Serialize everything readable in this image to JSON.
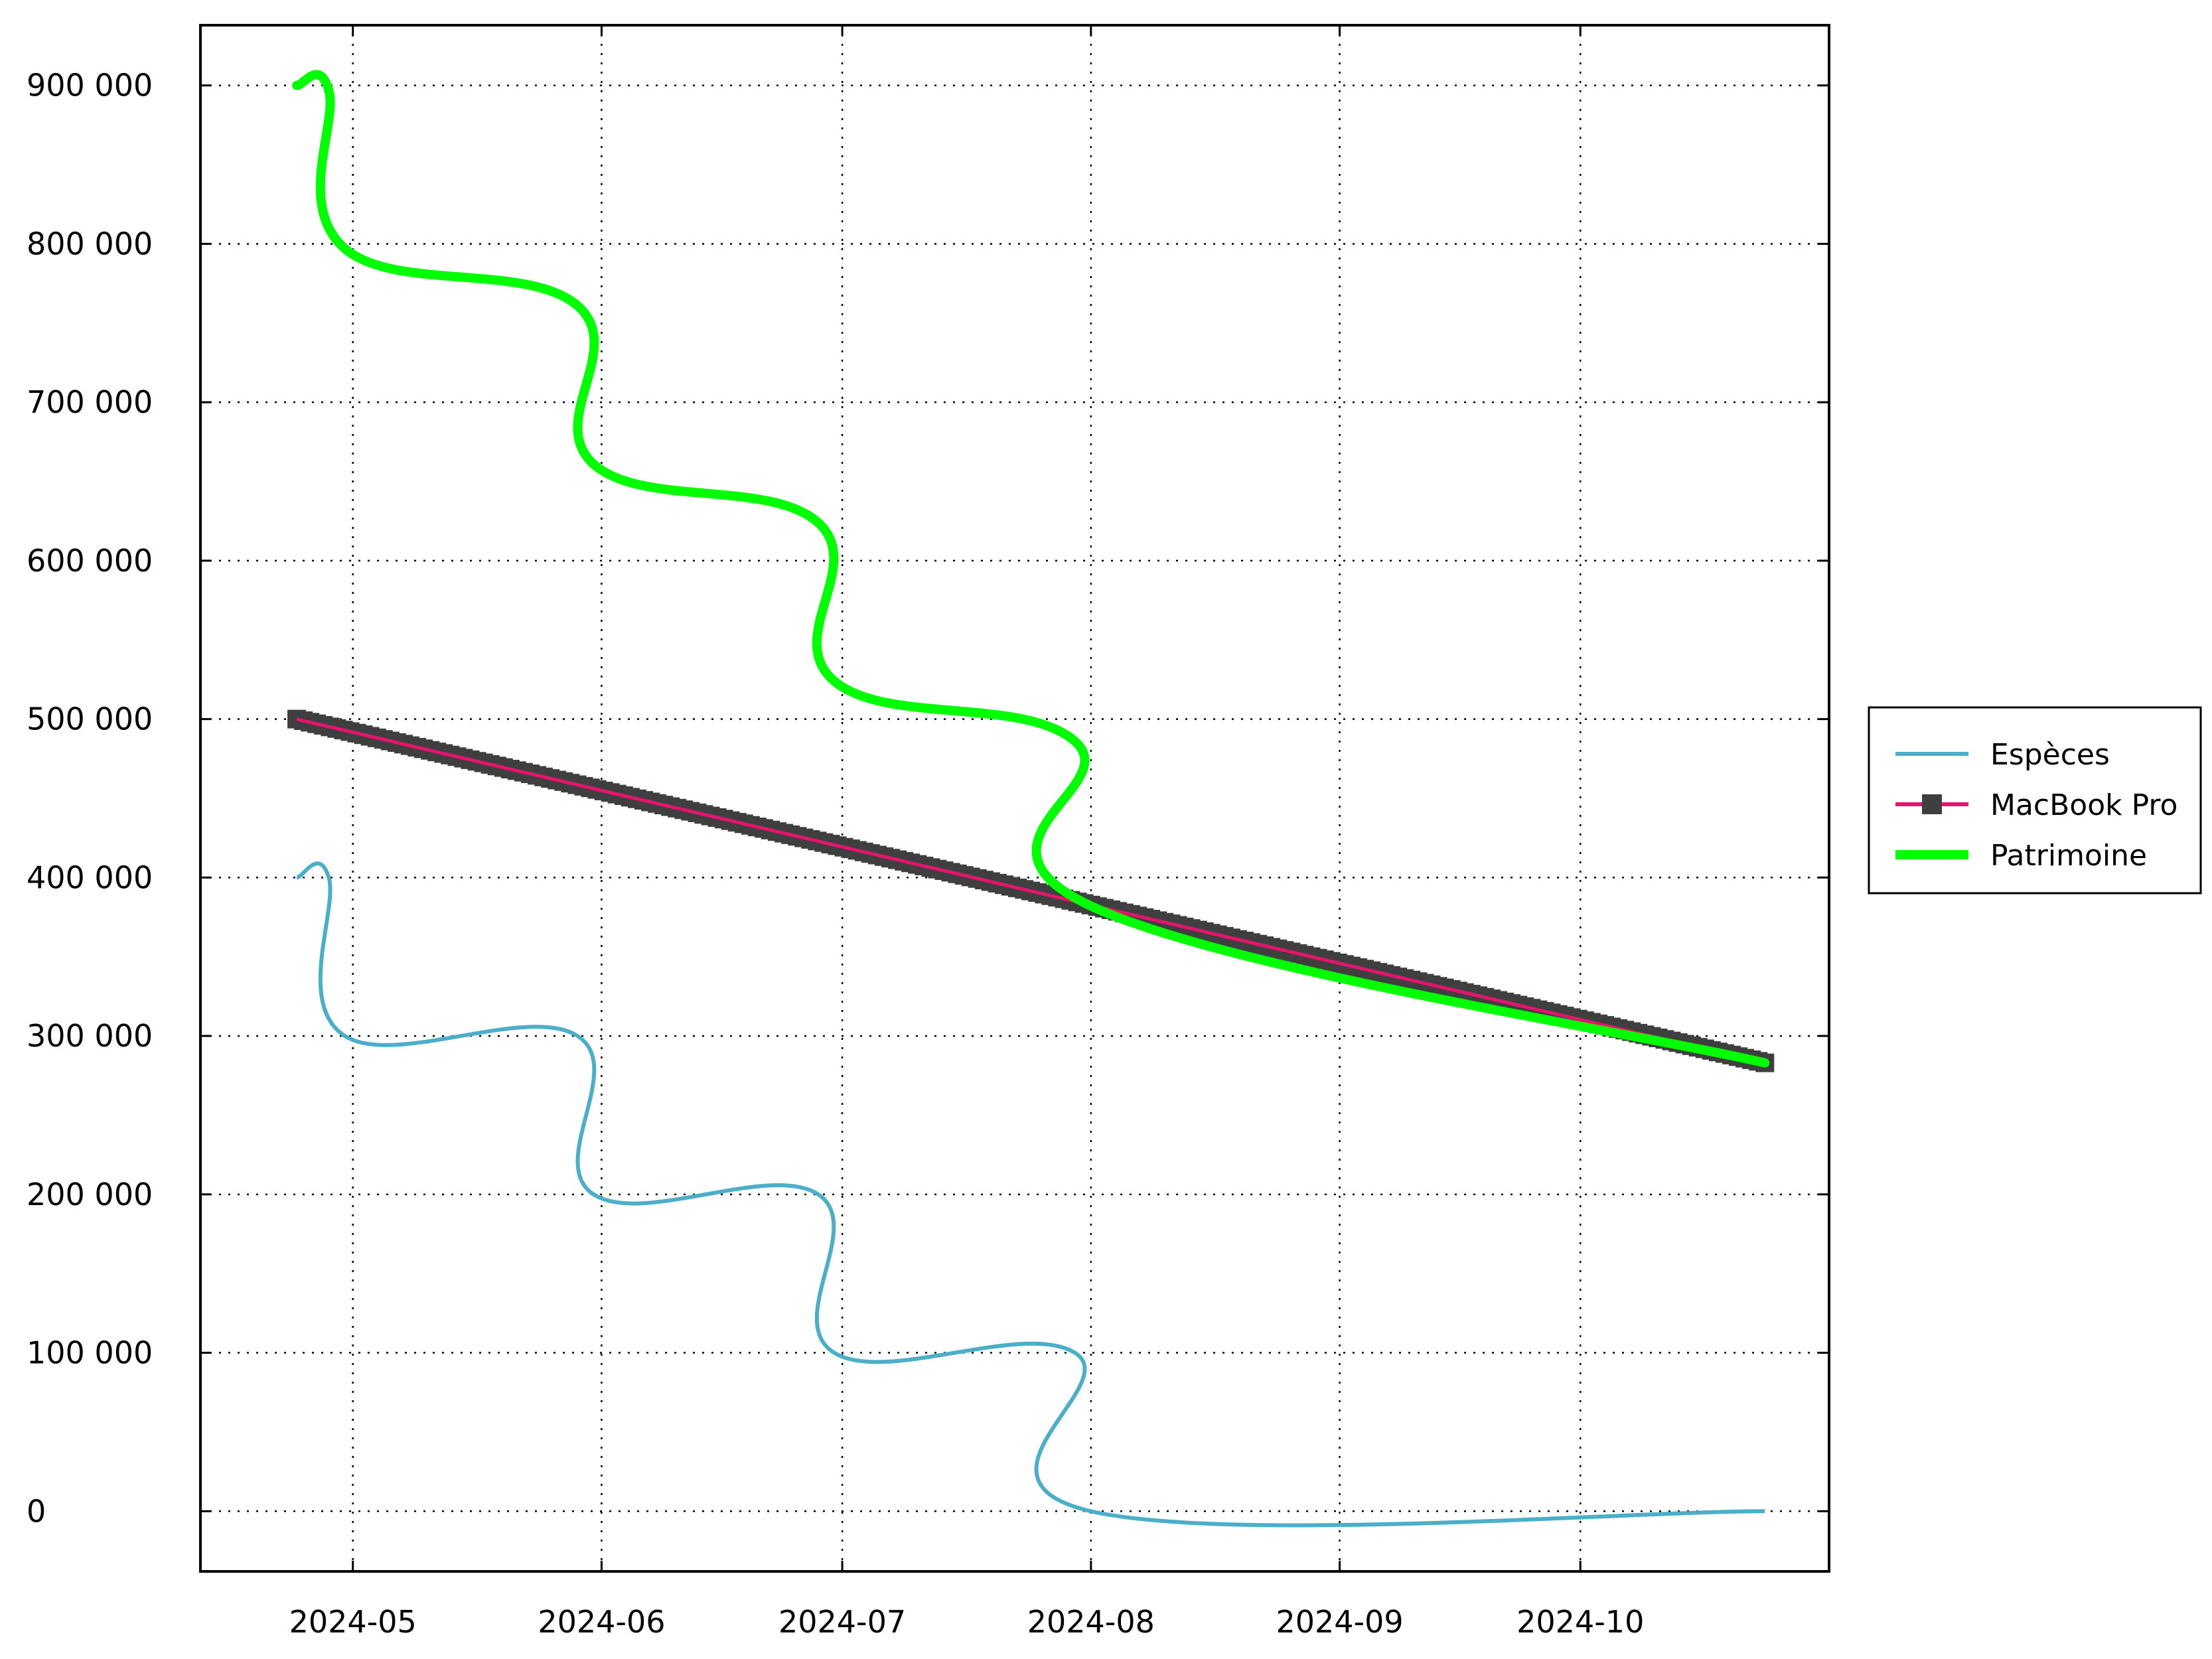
{
  "chart_data": {
    "type": "line",
    "title": "",
    "xlabel": "",
    "ylabel": "",
    "x_ticks": [
      "2024-05",
      "2024-06",
      "2024-07",
      "2024-08",
      "2024-09",
      "2024-10"
    ],
    "y_ticks": [
      "0",
      "100 000",
      "200 000",
      "300 000",
      "400 000",
      "500 000",
      "600 000",
      "700 000",
      "800 000",
      "900 000"
    ],
    "ylim": [
      -38000,
      938000
    ],
    "xlim": [
      "2024-04-12",
      "2024-11-01"
    ],
    "grid": true,
    "legend_position": "right",
    "series": [
      {
        "name": "Espèces",
        "color": "#4bafc9",
        "style": "thin-line",
        "points": [
          [
            "2024-04-24",
            400000
          ],
          [
            "2024-04-28",
            400000
          ],
          [
            "2024-04-30",
            300000
          ],
          [
            "2024-05-29",
            300000
          ],
          [
            "2024-05-31",
            200000
          ],
          [
            "2024-06-28",
            200000
          ],
          [
            "2024-06-30",
            100000
          ],
          [
            "2024-07-30",
            100000
          ],
          [
            "2024-08-01",
            0
          ],
          [
            "2024-10-24",
            0
          ]
        ]
      },
      {
        "name": "MacBook Pro",
        "color": "#e6136f",
        "marker_color": "#3f3f3f",
        "style": "line-with-square-markers",
        "points": [
          [
            "2024-04-24",
            500000
          ],
          [
            "2024-10-24",
            283000
          ]
        ]
      },
      {
        "name": "Patrimoine",
        "color": "#00ff00",
        "style": "thick-line",
        "points": [
          [
            "2024-04-24",
            900000
          ],
          [
            "2024-04-28",
            897000
          ],
          [
            "2024-04-30",
            797000
          ],
          [
            "2024-05-29",
            761000
          ],
          [
            "2024-05-31",
            661000
          ],
          [
            "2024-06-28",
            624000
          ],
          [
            "2024-06-30",
            524000
          ],
          [
            "2024-07-30",
            486000
          ],
          [
            "2024-08-01",
            382000
          ],
          [
            "2024-10-24",
            283000
          ]
        ]
      }
    ]
  }
}
